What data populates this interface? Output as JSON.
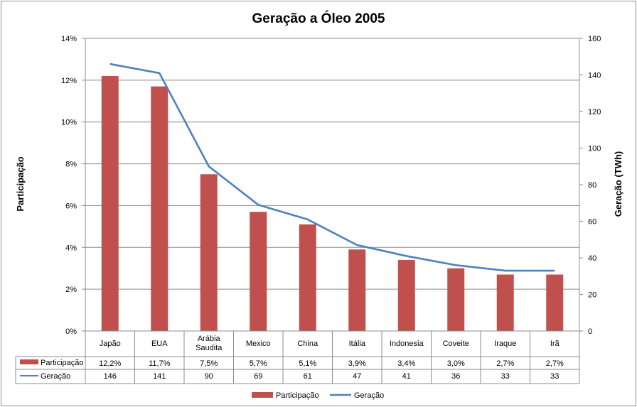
{
  "chart_data": {
    "type": "bar",
    "title": "Geração a Óleo 2005",
    "ylabel_left": "Participação",
    "ylabel_right": "Geração (TWh)",
    "categories": [
      [
        "Japão"
      ],
      [
        "EUA"
      ],
      [
        "Arábia",
        "Saudita"
      ],
      [
        "Mexico"
      ],
      [
        "China"
      ],
      [
        "Itália"
      ],
      [
        "Indonesia"
      ],
      [
        "Coveite"
      ],
      [
        "Iraque"
      ],
      [
        "Irã"
      ]
    ],
    "series": [
      {
        "name": "Participação",
        "type": "bar",
        "axis": "left",
        "color": "#c0504d",
        "values": [
          12.2,
          11.7,
          7.5,
          5.7,
          5.1,
          3.9,
          3.4,
          3.0,
          2.7,
          2.7
        ],
        "labels": [
          "12,2%",
          "11,7%",
          "7,5%",
          "5,7%",
          "5,1%",
          "3,9%",
          "3,4%",
          "3,0%",
          "2,7%",
          "2,7%"
        ]
      },
      {
        "name": "Geração",
        "type": "line",
        "axis": "right",
        "color": "#4f81bd",
        "values": [
          146,
          141,
          90,
          69,
          61,
          47,
          41,
          36,
          33,
          33
        ],
        "labels": [
          "146",
          "141",
          "90",
          "69",
          "61",
          "47",
          "41",
          "36",
          "33",
          "33"
        ]
      }
    ],
    "y_left": {
      "min": 0,
      "max": 14,
      "step": 2,
      "tick_labels": [
        "0%",
        "2%",
        "4%",
        "6%",
        "8%",
        "10%",
        "12%",
        "14%"
      ]
    },
    "y_right": {
      "min": 0,
      "max": 160,
      "step": 20,
      "tick_labels": [
        "0",
        "20",
        "40",
        "60",
        "80",
        "100",
        "120",
        "140",
        "160"
      ]
    },
    "grid": true,
    "legend_position": "bottom",
    "data_table": true
  }
}
